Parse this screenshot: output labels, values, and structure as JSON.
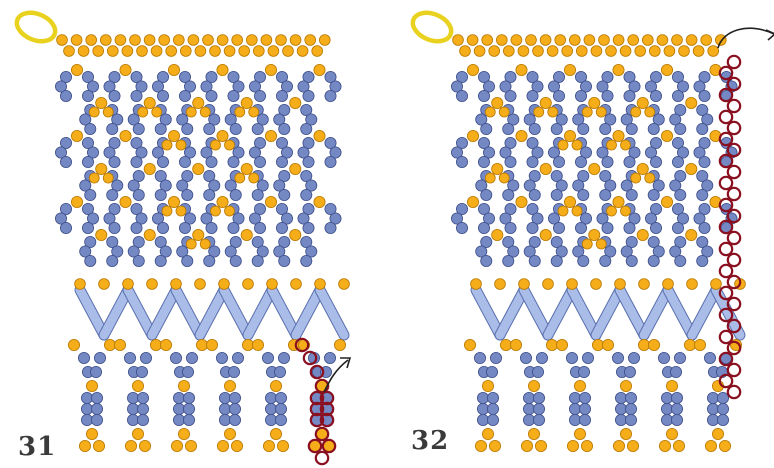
{
  "steps": [
    {
      "number": "31"
    },
    {
      "number": "32"
    }
  ],
  "colors": {
    "blue_bead": "#7488c4",
    "blue_bead_stroke": "#3e4f8a",
    "gold_bead": "#f5ad1a",
    "gold_bead_stroke": "#b87800",
    "bugle_fill": "#aabde9",
    "bugle_stroke": "#5a6fae",
    "ring": "#e9d21f",
    "thread_highlight": "#8a1020",
    "arrow": "#222222",
    "label": "#3a3a3a"
  },
  "icons": [
    "jump-ring-icon",
    "direction-arrow-icon"
  ]
}
